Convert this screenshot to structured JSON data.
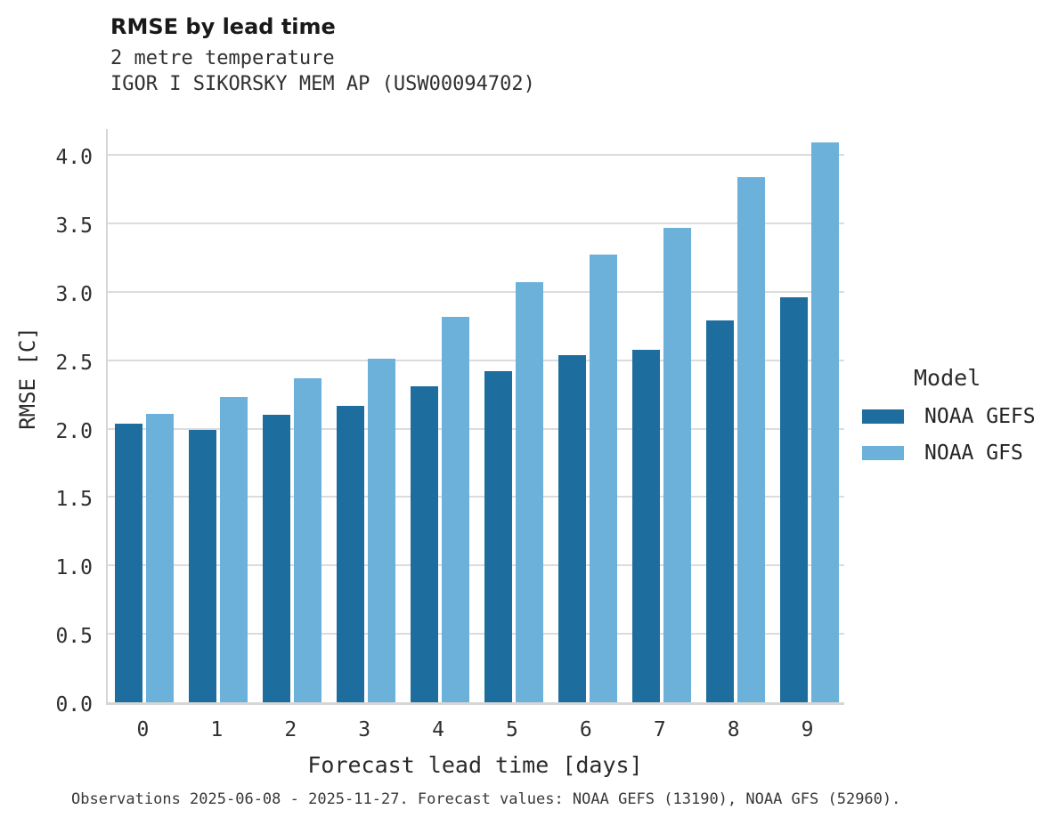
{
  "header": {
    "title": "RMSE by lead time",
    "subtitle_line1": "2 metre temperature",
    "subtitle_line2": "IGOR I SIKORSKY MEM AP (USW00094702)"
  },
  "chart_data": {
    "type": "bar",
    "title": "RMSE by lead time",
    "subtitle": "2 metre temperature",
    "station": "IGOR I SIKORSKY MEM AP (USW00094702)",
    "categories": [
      "0",
      "1",
      "2",
      "3",
      "4",
      "5",
      "6",
      "7",
      "8",
      "9"
    ],
    "series": [
      {
        "name": "NOAA GEFS",
        "color": "#1d6e9e",
        "values": [
          2.04,
          1.99,
          2.1,
          2.17,
          2.31,
          2.42,
          2.54,
          2.58,
          2.79,
          2.96
        ]
      },
      {
        "name": "NOAA GFS",
        "color": "#6cb1da",
        "values": [
          2.11,
          2.23,
          2.37,
          2.51,
          2.82,
          3.07,
          3.27,
          3.47,
          3.84,
          4.09
        ]
      }
    ],
    "xlabel": "Forecast lead time [days]",
    "ylabel": "RMSE [C]",
    "ylim": [
      0,
      4.21
    ],
    "ytick_step": 0.5,
    "ytick_max": 4.0,
    "grid": "horizontal",
    "legend_title": "Model",
    "legend_position": "right"
  },
  "caption": "Observations 2025-06-08 - 2025-11-27. Forecast values: NOAA GEFS (13190), NOAA GFS (52960).",
  "colors": {
    "gefs": "#1d6e9e",
    "gfs": "#6cb1da",
    "gridline": "#dcdcdc",
    "spine": "#d6d6d6",
    "title_text": "#191919",
    "body_text": "#303030"
  }
}
